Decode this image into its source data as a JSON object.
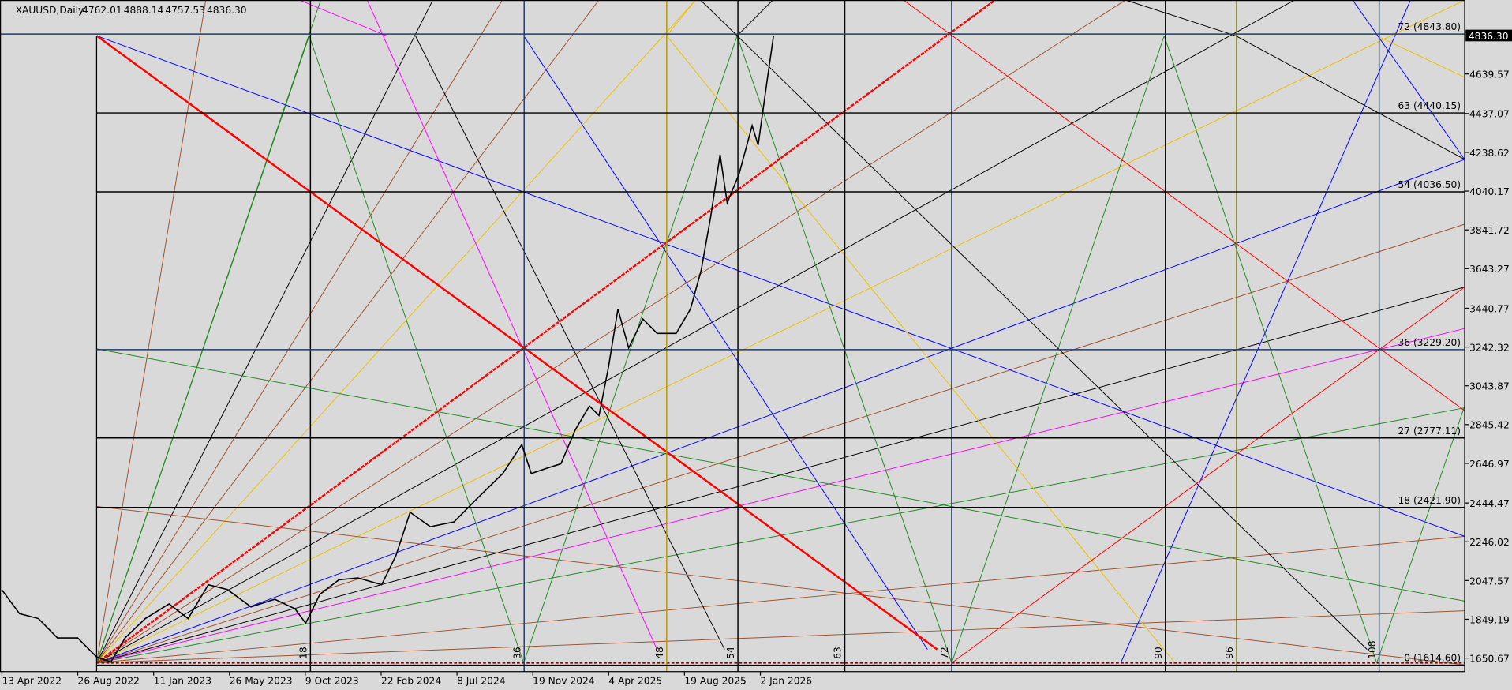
{
  "chart_data": {
    "type": "line",
    "title": "XAUUSD,Daily",
    "ohlc_labels": [
      "4762.01",
      "4888.14",
      "4757.53",
      "4836.30"
    ],
    "x": [
      -8.0,
      -6.5,
      -4.9,
      -3.3,
      -1.6,
      0,
      1.2,
      2.4,
      4.1,
      6.1,
      7.7,
      9.4,
      11.0,
      13.0,
      15.0,
      16.7,
      17.6,
      18.8,
      20.4,
      22.0,
      24.0,
      25.2,
      26.4,
      28.1,
      30.1,
      32.1,
      34.2,
      35.8,
      36.6,
      37.8,
      39.1,
      40.3,
      41.5,
      42.3,
      43.1,
      43.9,
      44.8,
      46.0,
      47.2,
      48.8,
      50.0,
      50.9,
      51.7,
      52.5,
      53.1,
      54.1,
      55.2,
      55.7,
      56.5,
      57.0
    ],
    "values": [
      2002,
      1878,
      1853,
      1754,
      1754,
      1656,
      1631,
      1754,
      1853,
      1928,
      1853,
      2026,
      2002,
      1913,
      1952,
      1903,
      1829,
      1977,
      2051,
      2061,
      2026,
      2175,
      2397,
      2323,
      2348,
      2471,
      2595,
      2743,
      2595,
      2620,
      2645,
      2818,
      2941,
      2892,
      3139,
      3436,
      3238,
      3386,
      3312,
      3312,
      3436,
      3634,
      3906,
      4227,
      3980,
      4128,
      4375,
      4276,
      4623,
      4836
    ],
    "color": "#000000",
    "xlim": [
      -8.14,
      115.2
    ],
    "xticks": [
      18,
      36,
      48,
      54,
      63,
      72,
      90,
      96,
      108
    ],
    "xtick_colors": [
      "#000000",
      "#1f3a6e",
      "#b8960a",
      "#000000",
      "#000000",
      "#1f3a6e",
      "#000000",
      "#6b6b00",
      "#1f3a6e"
    ],
    "x_dates": [
      "13 Apr 2022",
      "26 Aug 2022",
      "11 Jan 2023",
      "26 May 2023",
      "9 Oct 2023",
      "22 Feb 2024",
      "8 Jul 2024",
      "19 Nov 2024",
      "4 Apr 2025",
      "19 Aug 2025",
      "2 Jan 2026"
    ],
    "ylim": [
      1581.5,
      5018
    ],
    "yticks": [
      1650.67,
      1849.19,
      2047.57,
      2246.02,
      2444.47,
      2646.97,
      2845.42,
      3043.87,
      3242.32,
      3440.77,
      3643.27,
      3841.72,
      4040.17,
      4238.62,
      4437.07,
      4639.57
    ],
    "last_price": {
      "value": 4836.3,
      "label": "4836.30"
    },
    "levels": [
      {
        "value": 4843.8,
        "label": "72 (4843.80)",
        "color": "#1f3a6e"
      },
      {
        "value": 4440.15,
        "label": "63 (4440.15)",
        "color": "#000000"
      },
      {
        "value": 4036.5,
        "label": "54 (4036.50)",
        "color": "#000000"
      },
      {
        "value": 3229.2,
        "label": "36 (3229.20)",
        "color": "#1f3a6e"
      },
      {
        "value": 2777.11,
        "label": "27 (2777.11)",
        "color": "#000000"
      },
      {
        "value": 2421.9,
        "label": "18 (2421.90)",
        "color": "#000000"
      },
      {
        "value": 1614.6,
        "label": "0 (1614.60)",
        "color": "#000000"
      }
    ]
  }
}
